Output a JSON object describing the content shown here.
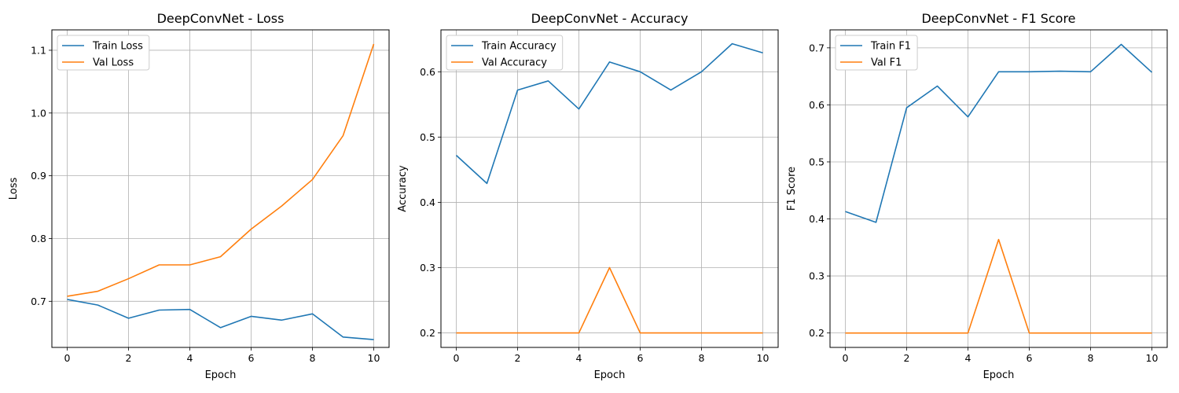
{
  "chart_data": [
    {
      "type": "line",
      "title": "DeepConvNet - Loss",
      "xlabel": "Epoch",
      "ylabel": "Loss",
      "x": [
        0,
        1,
        2,
        3,
        4,
        5,
        6,
        7,
        8,
        9,
        10
      ],
      "xlim": [
        -0.5,
        10.5
      ],
      "ylim": [
        0.6265,
        1.1325
      ],
      "xticks": [
        0,
        2,
        4,
        6,
        8,
        10
      ],
      "xtick_labels": [
        "0",
        "2",
        "4",
        "6",
        "8",
        "10"
      ],
      "yticks": [
        0.7,
        0.8,
        0.9,
        1.0,
        1.1
      ],
      "ytick_labels": [
        "0.7",
        "0.8",
        "0.9",
        "1.0",
        "1.1"
      ],
      "grid": true,
      "legend": "upper-left",
      "series": [
        {
          "name": "Train Loss",
          "color": "#1f77b4",
          "values": [
            0.703,
            0.694,
            0.673,
            0.686,
            0.687,
            0.658,
            0.676,
            0.67,
            0.68,
            0.643,
            0.639
          ]
        },
        {
          "name": "Val Loss",
          "color": "#ff7f0e",
          "values": [
            0.708,
            0.716,
            0.736,
            0.758,
            0.758,
            0.771,
            0.815,
            0.852,
            0.894,
            0.964,
            1.11
          ]
        }
      ]
    },
    {
      "type": "line",
      "title": "DeepConvNet - Accuracy",
      "xlabel": "Epoch",
      "ylabel": "Accuracy",
      "x": [
        0,
        1,
        2,
        3,
        4,
        5,
        6,
        7,
        8,
        9,
        10
      ],
      "xlim": [
        -0.5,
        10.5
      ],
      "ylim": [
        0.1778,
        0.6642
      ],
      "xticks": [
        0,
        2,
        4,
        6,
        8,
        10
      ],
      "xtick_labels": [
        "0",
        "2",
        "4",
        "6",
        "8",
        "10"
      ],
      "yticks": [
        0.2,
        0.3,
        0.4,
        0.5,
        0.6
      ],
      "ytick_labels": [
        "0.2",
        "0.3",
        "0.4",
        "0.5",
        "0.6"
      ],
      "grid": true,
      "legend": "upper-left",
      "series": [
        {
          "name": "Train Accuracy",
          "color": "#1f77b4",
          "values": [
            0.472,
            0.429,
            0.572,
            0.586,
            0.543,
            0.615,
            0.6,
            0.572,
            0.6,
            0.643,
            0.629
          ]
        },
        {
          "name": "Val Accuracy",
          "color": "#ff7f0e",
          "values": [
            0.2,
            0.2,
            0.2,
            0.2,
            0.2,
            0.3,
            0.2,
            0.2,
            0.2,
            0.2,
            0.2
          ]
        }
      ]
    },
    {
      "type": "line",
      "title": "DeepConvNet - F1 Score",
      "xlabel": "Epoch",
      "ylabel": "F1 Score",
      "x": [
        0,
        1,
        2,
        3,
        4,
        5,
        6,
        7,
        8,
        9,
        10
      ],
      "xlim": [
        -0.5,
        10.5
      ],
      "ylim": [
        0.1747,
        0.7315
      ],
      "xticks": [
        0,
        2,
        4,
        6,
        8,
        10
      ],
      "xtick_labels": [
        "0",
        "2",
        "4",
        "6",
        "8",
        "10"
      ],
      "yticks": [
        0.2,
        0.3,
        0.4,
        0.5,
        0.6,
        0.7
      ],
      "ytick_labels": [
        "0.2",
        "0.3",
        "0.4",
        "0.5",
        "0.6",
        "0.7"
      ],
      "grid": true,
      "legend": "upper-left",
      "series": [
        {
          "name": "Train F1",
          "color": "#1f77b4",
          "values": [
            0.413,
            0.394,
            0.595,
            0.633,
            0.579,
            0.658,
            0.658,
            0.659,
            0.658,
            0.706,
            0.657
          ]
        },
        {
          "name": "Val F1",
          "color": "#ff7f0e",
          "values": [
            0.2,
            0.2,
            0.2,
            0.2,
            0.2,
            0.364,
            0.2,
            0.2,
            0.2,
            0.2,
            0.2
          ]
        }
      ]
    }
  ]
}
